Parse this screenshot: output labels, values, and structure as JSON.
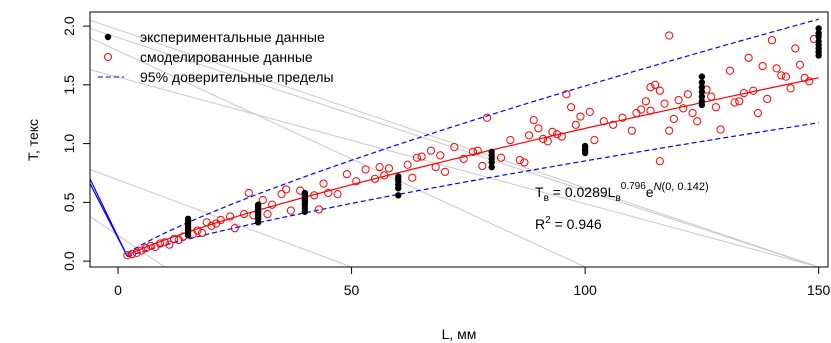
{
  "chart_data": {
    "type": "scatter",
    "title": "",
    "xlabel": "L, мм",
    "ylabel": "T, текс",
    "xlim": [
      -6,
      152
    ],
    "ylim": [
      -0.05,
      2.12
    ],
    "x_ticks": [
      0,
      50,
      100,
      150
    ],
    "y_ticks": [
      0.0,
      0.5,
      1.0,
      1.5,
      2.0
    ],
    "x_tick_labels": [
      "0",
      "50",
      "100",
      "150"
    ],
    "y_tick_labels": [
      "0.0",
      "0.5",
      "1.0",
      "1.5",
      "2.0"
    ],
    "grid": false,
    "legend": {
      "position": "top-left",
      "entries": [
        {
          "label": "экспериментальные данные",
          "marker": "filled-circle",
          "color": "#000000"
        },
        {
          "label": "смоделированные данные",
          "marker": "open-circle",
          "color": "#ff0000"
        },
        {
          "label": "95% доверительные пределы",
          "marker": "dashed-line",
          "color": "#0000ff"
        }
      ]
    },
    "annotation": {
      "T": "T",
      "T_sub": "в",
      "eq_mid": " = 0.0289L",
      "L_sub": "в",
      "L_sup": "0.796",
      "e": "e",
      "e_sup_prefix": "N",
      "e_sup_args": "(0, 0.142)",
      "R": "R",
      "R_sup": "2",
      "R_val": " = 0.946"
    },
    "colors": {
      "experimental": "#000000",
      "simulated": "#ff0000",
      "fit": "#ff0000",
      "confidence": "#0000ff",
      "background_lines": "#c8c8c8",
      "solid_blue": "#0000ff"
    },
    "series": [
      {
        "type": "scatter",
        "style": "filled",
        "points": [
          [
            15,
            0.22
          ],
          [
            15,
            0.24
          ],
          [
            15,
            0.26
          ],
          [
            15,
            0.28
          ],
          [
            15,
            0.3
          ],
          [
            15,
            0.32
          ],
          [
            15,
            0.34
          ],
          [
            15,
            0.36
          ],
          [
            30,
            0.33
          ],
          [
            30,
            0.36
          ],
          [
            30,
            0.38
          ],
          [
            30,
            0.4
          ],
          [
            30,
            0.42
          ],
          [
            30,
            0.44
          ],
          [
            30,
            0.46
          ],
          [
            30,
            0.48
          ],
          [
            40,
            0.42
          ],
          [
            40,
            0.45
          ],
          [
            40,
            0.48
          ],
          [
            40,
            0.5
          ],
          [
            40,
            0.52
          ],
          [
            40,
            0.54
          ],
          [
            40,
            0.56
          ],
          [
            40,
            0.58
          ],
          [
            60,
            0.56
          ],
          [
            60,
            0.62
          ],
          [
            60,
            0.65
          ],
          [
            60,
            0.68
          ],
          [
            60,
            0.7
          ],
          [
            60,
            0.72
          ],
          [
            80,
            0.8
          ],
          [
            80,
            0.84
          ],
          [
            80,
            0.87
          ],
          [
            80,
            0.9
          ],
          [
            80,
            0.93
          ],
          [
            100,
            0.92
          ],
          [
            100,
            0.94
          ],
          [
            100,
            0.96
          ],
          [
            100,
            0.98
          ],
          [
            125,
            1.33
          ],
          [
            125,
            1.36
          ],
          [
            125,
            1.4
          ],
          [
            125,
            1.44
          ],
          [
            125,
            1.48
          ],
          [
            125,
            1.52
          ],
          [
            125,
            1.57
          ],
          [
            150,
            1.75
          ],
          [
            150,
            1.78
          ],
          [
            150,
            1.81
          ],
          [
            150,
            1.84
          ],
          [
            150,
            1.87
          ],
          [
            150,
            1.91
          ],
          [
            150,
            1.94
          ],
          [
            150,
            1.98
          ]
        ]
      },
      {
        "type": "scatter",
        "style": "open",
        "points": [
          [
            2,
            0.05
          ],
          [
            3,
            0.06
          ],
          [
            4,
            0.07
          ],
          [
            5,
            0.09
          ],
          [
            6,
            0.11
          ],
          [
            7,
            0.13
          ],
          [
            8,
            0.12
          ],
          [
            9,
            0.15
          ],
          [
            10,
            0.16
          ],
          [
            11,
            0.14
          ],
          [
            12,
            0.19
          ],
          [
            13,
            0.18
          ],
          [
            14,
            0.21
          ],
          [
            16,
            0.23
          ],
          [
            17,
            0.26
          ],
          [
            18,
            0.24
          ],
          [
            19,
            0.33
          ],
          [
            20,
            0.3
          ],
          [
            21,
            0.32
          ],
          [
            22,
            0.35
          ],
          [
            24,
            0.38
          ],
          [
            25,
            0.28
          ],
          [
            27,
            0.4
          ],
          [
            28,
            0.58
          ],
          [
            29,
            0.39
          ],
          [
            31,
            0.52
          ],
          [
            32,
            0.4
          ],
          [
            33,
            0.48
          ],
          [
            35,
            0.57
          ],
          [
            36,
            0.61
          ],
          [
            37,
            0.43
          ],
          [
            39,
            0.6
          ],
          [
            42,
            0.56
          ],
          [
            43,
            0.44
          ],
          [
            44,
            0.66
          ],
          [
            45,
            0.58
          ],
          [
            47,
            0.57
          ],
          [
            49,
            0.74
          ],
          [
            51,
            0.68
          ],
          [
            53,
            0.78
          ],
          [
            55,
            0.7
          ],
          [
            56,
            0.8
          ],
          [
            57,
            0.73
          ],
          [
            58,
            0.79
          ],
          [
            62,
            0.82
          ],
          [
            63,
            0.71
          ],
          [
            64,
            0.88
          ],
          [
            65,
            0.89
          ],
          [
            67,
            0.94
          ],
          [
            68,
            0.8
          ],
          [
            69,
            0.9
          ],
          [
            70,
            0.76
          ],
          [
            72,
            0.97
          ],
          [
            74,
            0.87
          ],
          [
            76,
            0.93
          ],
          [
            77,
            0.94
          ],
          [
            78,
            0.81
          ],
          [
            79,
            1.22
          ],
          [
            82,
            0.88
          ],
          [
            84,
            1.03
          ],
          [
            86,
            0.86
          ],
          [
            87,
            0.84
          ],
          [
            88,
            1.07
          ],
          [
            89,
            1.2
          ],
          [
            90,
            1.13
          ],
          [
            91,
            1.04
          ],
          [
            92,
            1.02
          ],
          [
            93,
            1.1
          ],
          [
            94,
            1.08
          ],
          [
            95,
            1.06
          ],
          [
            96,
            1.42
          ],
          [
            97,
            1.31
          ],
          [
            98,
            1.16
          ],
          [
            99,
            1.23
          ],
          [
            101,
            1.27
          ],
          [
            102,
            1.03
          ],
          [
            104,
            1.19
          ],
          [
            106,
            1.16
          ],
          [
            108,
            1.22
          ],
          [
            110,
            1.11
          ],
          [
            111,
            1.26
          ],
          [
            112,
            1.29
          ],
          [
            113,
            1.36
          ],
          [
            114,
            1.28
          ],
          [
            115,
            1.5
          ],
          [
            116,
            1.45
          ],
          [
            117,
            1.34
          ],
          [
            118,
            1.92
          ],
          [
            119,
            1.21
          ],
          [
            120,
            1.37
          ],
          [
            121,
            1.3
          ],
          [
            122,
            1.42
          ],
          [
            123,
            1.26
          ],
          [
            124,
            1.19
          ],
          [
            126,
            1.46
          ],
          [
            127,
            1.4
          ],
          [
            128,
            1.31
          ],
          [
            129,
            1.12
          ],
          [
            131,
            1.62
          ],
          [
            132,
            1.35
          ],
          [
            133,
            1.36
          ],
          [
            134,
            1.43
          ],
          [
            135,
            1.73
          ],
          [
            136,
            1.45
          ],
          [
            137,
            1.26
          ],
          [
            138,
            1.66
          ],
          [
            139,
            1.38
          ],
          [
            140,
            1.88
          ],
          [
            141,
            1.64
          ],
          [
            142,
            1.58
          ],
          [
            143,
            1.57
          ],
          [
            144,
            1.47
          ],
          [
            145,
            1.81
          ],
          [
            146,
            1.67
          ],
          [
            147,
            1.56
          ],
          [
            148,
            1.53
          ],
          [
            149,
            1.89
          ],
          [
            118,
            1.11
          ],
          [
            116,
            0.85
          ],
          [
            114,
            1.48
          ]
        ]
      },
      {
        "type": "line",
        "style": "fit",
        "x": [
          2,
          4,
          6,
          8,
          10,
          15,
          20,
          25,
          30,
          40,
          50,
          60,
          70,
          80,
          90,
          100,
          110,
          120,
          130,
          140,
          150
        ]
      },
      {
        "type": "line",
        "style": "upper-95",
        "x": [
          2,
          4,
          6,
          8,
          10,
          15,
          20,
          25,
          30,
          40,
          50,
          60,
          70,
          80,
          90,
          100,
          110,
          120,
          130,
          140,
          150
        ],
        "multiplier": 1.32
      },
      {
        "type": "line",
        "style": "lower-95",
        "x": [
          2,
          4,
          6,
          8,
          10,
          15,
          20,
          25,
          30,
          40,
          50,
          60,
          70,
          80,
          90,
          100,
          110,
          120,
          130,
          140,
          150
        ],
        "multiplier": 0.755
      },
      {
        "type": "line",
        "style": "solid-blue",
        "points": [
          [
            -6,
            0.7
          ],
          [
            2,
            0.04
          ],
          [
            -6,
            0.66
          ],
          [
            2,
            0.04
          ]
        ]
      },
      {
        "type": "line",
        "style": "background-gray",
        "segments": [
          [
            [
              -6,
              1.63
            ],
            [
              150,
              -0.05
            ]
          ],
          [
            [
              -6,
              1.98
            ],
            [
              150,
              -0.05
            ]
          ],
          [
            [
              -6,
              1.9
            ],
            [
              100,
              -0.05
            ]
          ],
          [
            [
              -6,
              0.78
            ],
            [
              50,
              -0.05
            ]
          ],
          [
            [
              -6,
              0.38
            ],
            [
              10,
              -0.05
            ]
          ],
          [
            [
              -6,
              2.05
            ],
            [
              150,
              -0.05
            ]
          ]
        ]
      }
    ]
  }
}
